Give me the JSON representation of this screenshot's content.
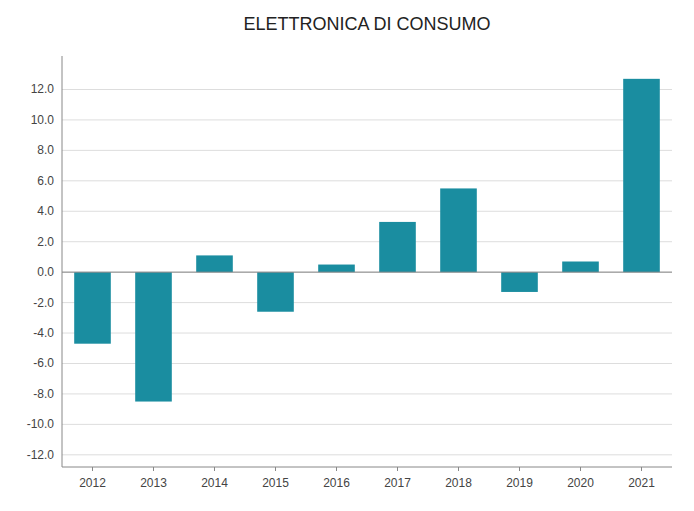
{
  "chart_data": {
    "type": "bar",
    "title": "ELETTRONICA DI CONSUMO",
    "categories": [
      2012,
      2013,
      2014,
      2015,
      2016,
      2017,
      2018,
      2019,
      2020,
      2021
    ],
    "values": [
      -4.7,
      -8.5,
      1.1,
      -2.6,
      0.5,
      3.3,
      5.5,
      -1.3,
      0.7,
      12.7
    ],
    "color": "#1a8da0",
    "ylim": [
      -12.8,
      14.2
    ],
    "yticks": [
      {
        "value": -12.0,
        "label": "-12.0"
      },
      {
        "value": -10.0,
        "label": "-10.0"
      },
      {
        "value": -8.0,
        "label": "-8.0"
      },
      {
        "value": -6.0,
        "label": "-6.0"
      },
      {
        "value": -4.0,
        "label": "-4.0"
      },
      {
        "value": -2.0,
        "label": "-2.0"
      },
      {
        "value": 0.0,
        "label": "0.0"
      },
      {
        "value": 2.0,
        "label": "2.0"
      },
      {
        "value": 4.0,
        "label": "4.0"
      },
      {
        "value": 6.0,
        "label": "6.0"
      },
      {
        "value": 8.0,
        "label": "8.0"
      },
      {
        "value": 10.0,
        "label": "10.0"
      },
      {
        "value": 12.0,
        "label": "12.0"
      }
    ],
    "grid": true
  }
}
